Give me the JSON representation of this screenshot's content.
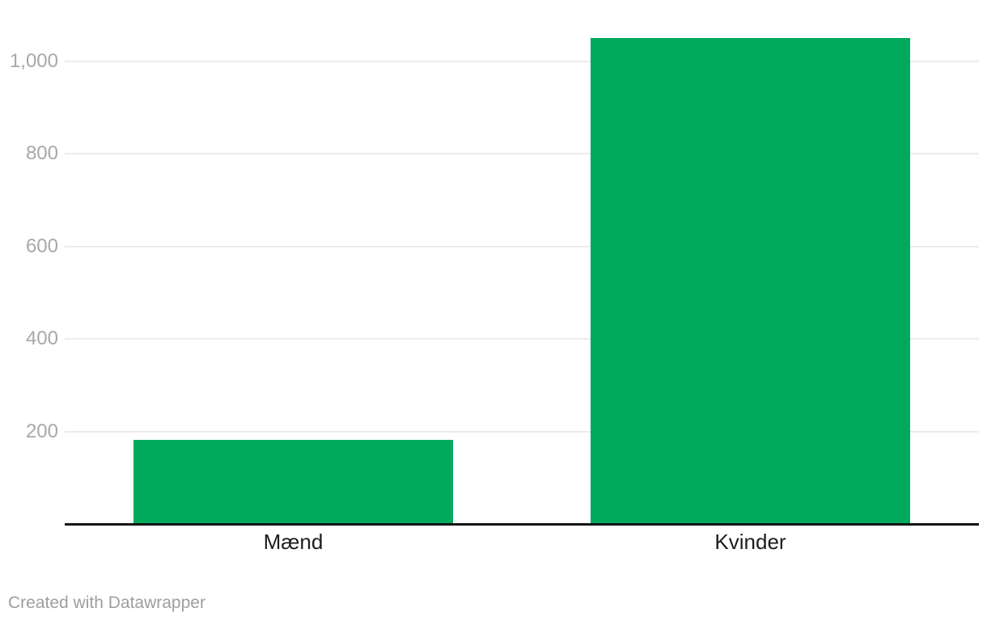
{
  "footer": {
    "credit": "Created with Datawrapper"
  },
  "colors": {
    "bar": "#00a95c",
    "gridline": "#ebebeb",
    "axis_line": "#141414",
    "tick_label": "#a8a8a8",
    "category_label": "#1d1d1d",
    "footer_text": "#9e9e9e",
    "background": "#ffffff"
  },
  "chart_data": {
    "type": "bar",
    "categories": [
      "Mænd",
      "Kvinder"
    ],
    "category_ids": [
      "maend",
      "kvinder"
    ],
    "values": [
      182,
      1050
    ],
    "title": "",
    "xlabel": "",
    "ylabel": "",
    "ylim": [
      0,
      1132
    ],
    "yticks": [
      {
        "value": 200,
        "label": "200"
      },
      {
        "value": 400,
        "label": "400"
      },
      {
        "value": 600,
        "label": "600"
      },
      {
        "value": 800,
        "label": "800"
      },
      {
        "value": 1000,
        "label": "1,000"
      }
    ],
    "grid": "horizontal",
    "legend": "none",
    "bar_color": "#00a95c",
    "credit": "Created with Datawrapper"
  }
}
